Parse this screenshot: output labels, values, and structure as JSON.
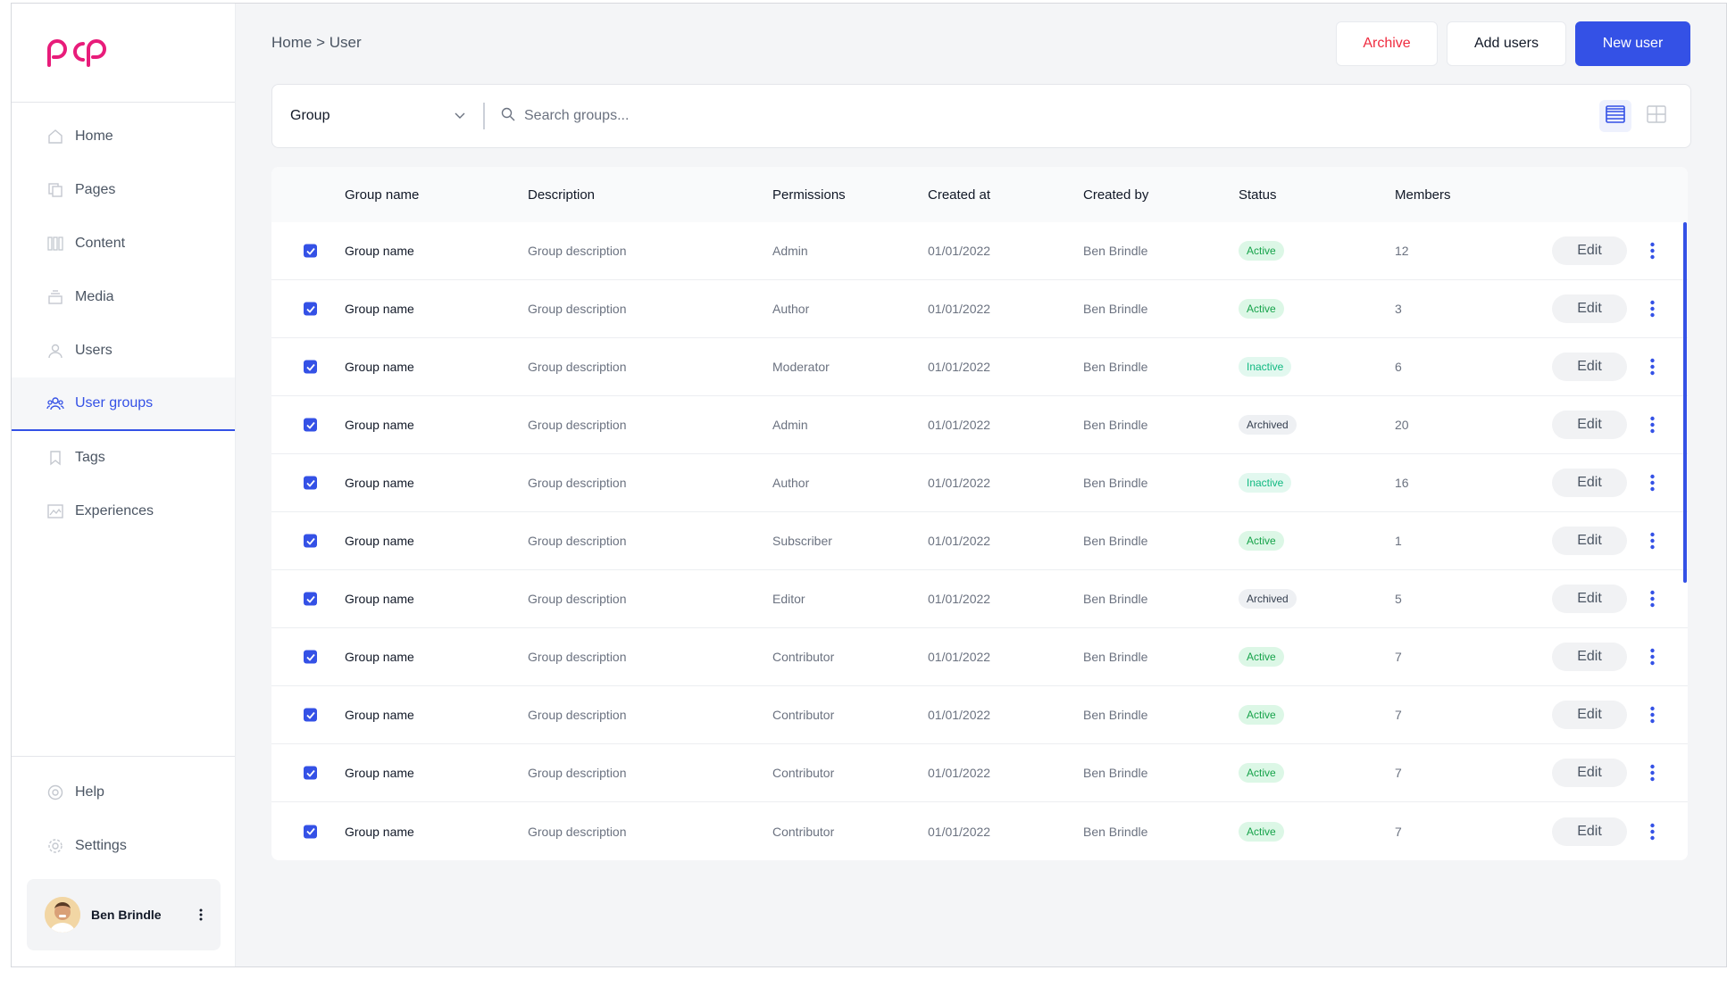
{
  "breadcrumb": "Home > User",
  "actions": {
    "archive": "Archive",
    "add_users": "Add users",
    "new_user": "New user"
  },
  "colors": {
    "accent": "#3451e6",
    "brand": "#e81c7a",
    "danger": "#ef2b3f"
  },
  "sidebar": {
    "items": [
      {
        "label": "Home",
        "icon": "home-icon"
      },
      {
        "label": "Pages",
        "icon": "pages-icon"
      },
      {
        "label": "Content",
        "icon": "content-icon"
      },
      {
        "label": "Media",
        "icon": "media-icon"
      },
      {
        "label": "Users",
        "icon": "user-icon"
      },
      {
        "label": "User groups",
        "icon": "user-groups-icon",
        "active": true
      },
      {
        "label": "Tags",
        "icon": "tag-icon"
      },
      {
        "label": "Experiences",
        "icon": "experiences-icon"
      }
    ],
    "bottom": [
      {
        "label": "Help",
        "icon": "help-icon"
      },
      {
        "label": "Settings",
        "icon": "gear-icon"
      }
    ],
    "user": {
      "name": "Ben Brindle"
    }
  },
  "filter": {
    "group_value": "Group",
    "search_placeholder": "Search groups..."
  },
  "table": {
    "headers": [
      "Group name",
      "Description",
      "Permissions",
      "Created at",
      "Created by",
      "Status",
      "Members"
    ],
    "edit_label": "Edit",
    "rows": [
      {
        "name": "Group name",
        "description": "Group description",
        "permission": "Admin",
        "created_at": "01/01/2022",
        "created_by": "Ben Brindle",
        "status": "Active",
        "status_kind": "active",
        "members": "12",
        "checked": true
      },
      {
        "name": "Group name",
        "description": "Group description",
        "permission": "Author",
        "created_at": "01/01/2022",
        "created_by": "Ben Brindle",
        "status": "Active",
        "status_kind": "active",
        "members": "3",
        "checked": true
      },
      {
        "name": "Group name",
        "description": "Group description",
        "permission": "Moderator",
        "created_at": "01/01/2022",
        "created_by": "Ben Brindle",
        "status": "Inactive",
        "status_kind": "inactive",
        "members": "6",
        "checked": true
      },
      {
        "name": "Group name",
        "description": "Group description",
        "permission": "Admin",
        "created_at": "01/01/2022",
        "created_by": "Ben Brindle",
        "status": "Archived",
        "status_kind": "archived",
        "members": "20",
        "checked": true
      },
      {
        "name": "Group name",
        "description": "Group description",
        "permission": "Author",
        "created_at": "01/01/2022",
        "created_by": "Ben Brindle",
        "status": "Inactive",
        "status_kind": "inactive",
        "members": "16",
        "checked": true
      },
      {
        "name": "Group name",
        "description": "Group description",
        "permission": "Subscriber",
        "created_at": "01/01/2022",
        "created_by": "Ben Brindle",
        "status": "Active",
        "status_kind": "active",
        "members": "1",
        "checked": true
      },
      {
        "name": "Group name",
        "description": "Group description",
        "permission": "Editor",
        "created_at": "01/01/2022",
        "created_by": "Ben Brindle",
        "status": "Archived",
        "status_kind": "archived",
        "members": "5",
        "checked": true
      },
      {
        "name": "Group name",
        "description": "Group description",
        "permission": "Contributor",
        "created_at": "01/01/2022",
        "created_by": "Ben Brindle",
        "status": "Active",
        "status_kind": "active",
        "members": "7",
        "checked": true
      },
      {
        "name": "Group name",
        "description": "Group description",
        "permission": "Contributor",
        "created_at": "01/01/2022",
        "created_by": "Ben Brindle",
        "status": "Active",
        "status_kind": "active",
        "members": "7",
        "checked": true
      },
      {
        "name": "Group name",
        "description": "Group description",
        "permission": "Contributor",
        "created_at": "01/01/2022",
        "created_by": "Ben Brindle",
        "status": "Active",
        "status_kind": "active",
        "members": "7",
        "checked": true
      },
      {
        "name": "Group name",
        "description": "Group description",
        "permission": "Contributor",
        "created_at": "01/01/2022",
        "created_by": "Ben Brindle",
        "status": "Active",
        "status_kind": "active",
        "members": "7",
        "checked": true
      }
    ]
  }
}
